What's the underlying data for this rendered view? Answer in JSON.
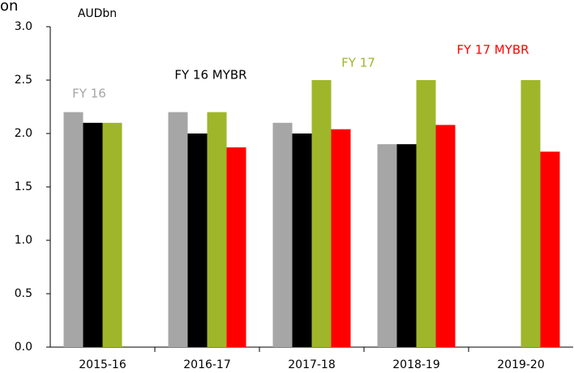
{
  "chart_data": {
    "type": "bar",
    "corner_text": "on",
    "unit_label": "AUDbn",
    "categories": [
      "2015-16",
      "2016-17",
      "2017-18",
      "2018-19",
      "2019-20"
    ],
    "series": [
      {
        "name": "FY 16",
        "color": "#a6a6a6",
        "values": [
          2.2,
          2.2,
          2.1,
          1.9,
          null
        ]
      },
      {
        "name": "FY 16 MYBR",
        "color": "#000000",
        "values": [
          2.1,
          2.0,
          2.0,
          1.9,
          null
        ]
      },
      {
        "name": "FY 17",
        "color": "#9fb62a",
        "values": [
          2.1,
          2.2,
          2.5,
          2.5,
          2.5
        ]
      },
      {
        "name": "FY 17 MYBR",
        "color": "#ff0000",
        "values": [
          null,
          1.87,
          2.04,
          2.08,
          1.83
        ]
      }
    ],
    "ylim": [
      0,
      3
    ],
    "yticks": [
      {
        "value": 0,
        "label": "0.0"
      },
      0.5,
      {
        "value": 1,
        "label": "1.0"
      },
      1.5,
      {
        "value": 2,
        "label": "2.0"
      },
      2.5,
      {
        "value": 3,
        "label": "3.0"
      }
    ]
  }
}
